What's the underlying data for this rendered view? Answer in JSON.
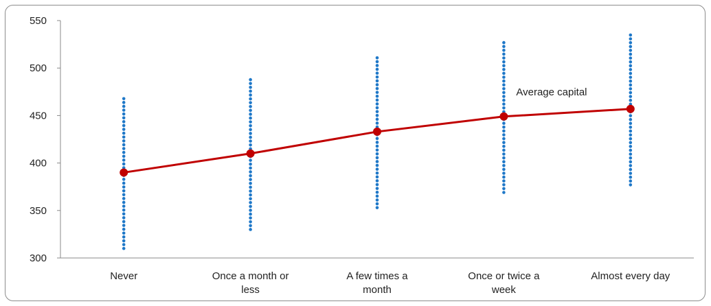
{
  "chart_data": {
    "type": "line",
    "title": "",
    "xlabel": "",
    "ylabel": "",
    "categories": [
      "Never",
      "Once a month or less",
      "A few times a month",
      "Once or twice a week",
      "Almost every day"
    ],
    "category_label_lines": [
      [
        "Never"
      ],
      [
        "Once a month or",
        "less"
      ],
      [
        "A few times a",
        "month"
      ],
      [
        "Once or twice a",
        "week"
      ],
      [
        "Almost every day"
      ]
    ],
    "ylim": [
      300,
      550
    ],
    "yticks": [
      300,
      350,
      400,
      450,
      500,
      550
    ],
    "grid": false,
    "series": [
      {
        "name": "Average capital",
        "values": [
          390,
          410,
          433,
          449,
          457
        ],
        "color": "#c00000"
      }
    ],
    "ranges": [
      {
        "low": 310,
        "high": 470
      },
      {
        "low": 330,
        "high": 490
      },
      {
        "low": 353,
        "high": 513
      },
      {
        "low": 369,
        "high": 529
      },
      {
        "low": 377,
        "high": 537
      }
    ],
    "range_color": "#1f78c8",
    "annotation": {
      "text": "Average capital",
      "x_category": "Once or twice a week",
      "y": 475
    }
  }
}
